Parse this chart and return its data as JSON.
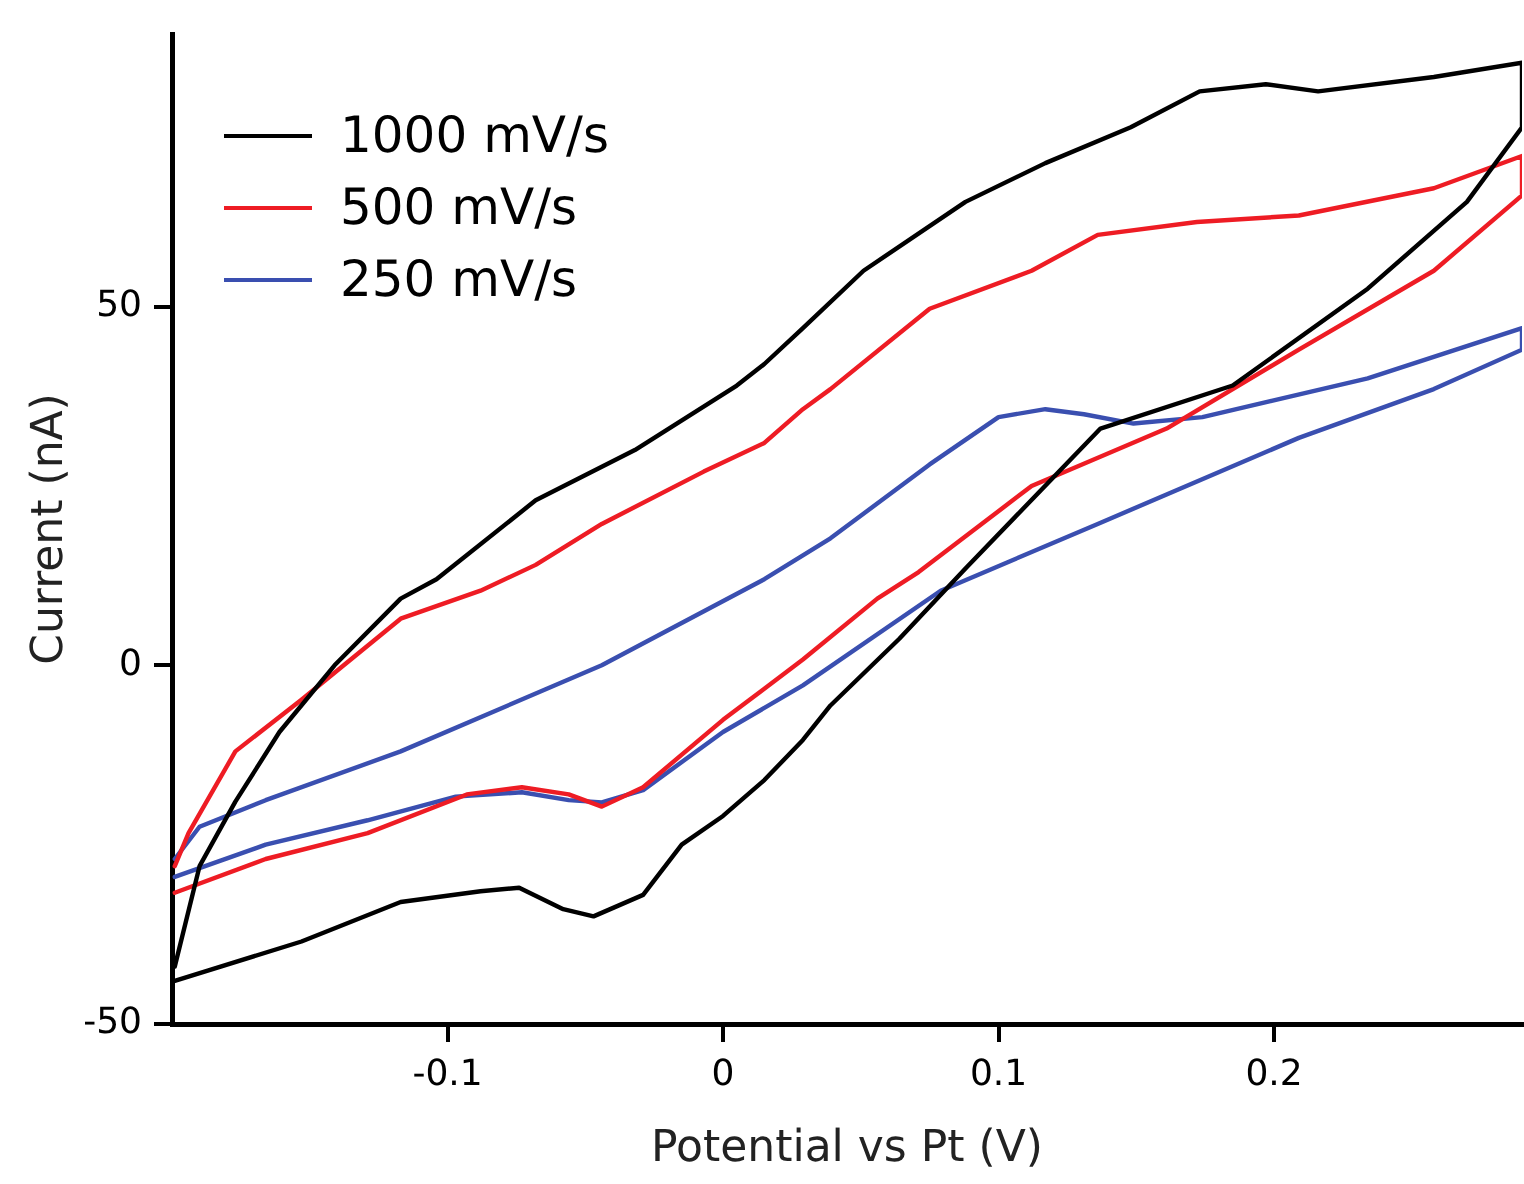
{
  "chart_data": {
    "type": "line",
    "xlabel": "Potential vs Pt (V)",
    "ylabel": "Current (nA)",
    "xlim": [
      -0.2,
      0.29
    ],
    "xticks": [
      -0.1,
      0,
      0.1,
      0.2
    ],
    "ylim": [
      -50,
      88
    ],
    "yticks": [
      -50,
      0,
      50
    ],
    "grid": false,
    "legend": "top left",
    "marker": "none",
    "line_style": "solid",
    "series": [
      {
        "name": "1000 mV/s",
        "color": "#000000",
        "x": [
          -0.199,
          -0.153,
          -0.117,
          -0.088,
          -0.074,
          -0.058,
          -0.047,
          -0.029,
          -0.015,
          0,
          0.015,
          0.029,
          0.039,
          0.064,
          0.088,
          0.137,
          0.185,
          0.234,
          0.27,
          0.29,
          0.29,
          0.258,
          0.216,
          0.197,
          0.173,
          0.148,
          0.117,
          0.088,
          0.051,
          0.029,
          0.015,
          0.005,
          -0.032,
          -0.068,
          -0.104,
          -0.117,
          -0.141,
          -0.161,
          -0.177,
          -0.19,
          -0.199
        ],
        "values": [
          -44,
          -38.5,
          -33,
          -31.5,
          -31,
          -34,
          -35,
          -32,
          -25,
          -21,
          -16,
          -10.4,
          -5.6,
          3.7,
          13.5,
          33,
          39,
          52.5,
          64.6,
          75,
          84,
          82,
          80,
          81,
          80,
          75,
          70,
          64.6,
          55,
          47,
          42,
          39,
          30,
          23,
          12,
          9.3,
          0,
          -9.3,
          -19,
          -28,
          -42
        ]
      },
      {
        "name": "500 mV/s",
        "color": "#ee1c24",
        "x": [
          -0.199,
          -0.166,
          -0.129,
          -0.093,
          -0.073,
          -0.056,
          -0.044,
          -0.029,
          0,
          0.029,
          0.056,
          0.071,
          0.112,
          0.161,
          0.209,
          0.258,
          0.29,
          0.29,
          0.258,
          0.209,
          0.172,
          0.136,
          0.112,
          0.075,
          0.039,
          0.029,
          0.015,
          -0.007,
          -0.044,
          -0.068,
          -0.088,
          -0.117,
          -0.153,
          -0.177,
          -0.194,
          -0.199
        ],
        "values": [
          -31.7,
          -27,
          -23.4,
          -18,
          -17,
          -18,
          -19.7,
          -17,
          -7.6,
          0.8,
          9.3,
          13,
          25,
          33,
          44,
          55,
          65.5,
          71,
          66.5,
          62.7,
          61.8,
          60,
          55,
          49.7,
          38.5,
          35.7,
          31,
          27,
          19.7,
          14,
          10.4,
          6.5,
          -4.8,
          -12,
          -23.4,
          -28
        ]
      },
      {
        "name": "250 mV/s",
        "color": "#3a4fb0",
        "x": [
          -0.199,
          -0.166,
          -0.129,
          -0.097,
          -0.073,
          -0.056,
          -0.044,
          -0.029,
          0,
          0.029,
          0.079,
          0.136,
          0.209,
          0.258,
          0.29,
          0.29,
          0.234,
          0.174,
          0.149,
          0.131,
          0.117,
          0.1,
          0.075,
          0.039,
          0.015,
          -0.044,
          -0.117,
          -0.166,
          -0.19,
          -0.199
        ],
        "values": [
          -29.5,
          -25,
          -21.6,
          -18.3,
          -17.7,
          -18.8,
          -19.1,
          -17.4,
          -9.3,
          -2.8,
          10.4,
          19.7,
          31.7,
          38.5,
          44,
          47,
          40,
          34.6,
          33.7,
          35,
          35.7,
          34.6,
          28,
          17.7,
          12,
          0,
          -12,
          -18.8,
          -22.5,
          -27
        ]
      }
    ]
  }
}
